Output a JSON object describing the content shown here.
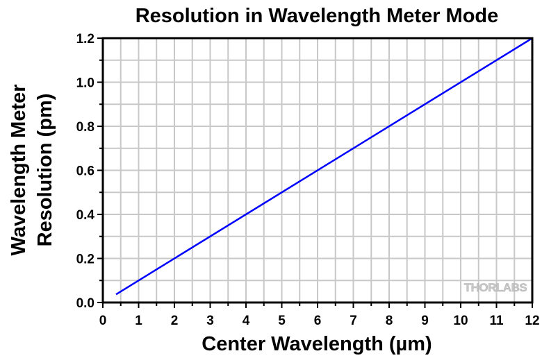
{
  "chart_data": {
    "type": "line",
    "title": "Resolution in Wavelength Meter Mode",
    "xlabel": "Center Wavelength (µm)",
    "ylabel_lines": [
      "Wavelength Meter",
      "Resolution (pm)"
    ],
    "xlim": [
      0,
      12
    ],
    "ylim": [
      0,
      1.2
    ],
    "xticks": [
      0,
      1,
      2,
      3,
      4,
      5,
      6,
      7,
      8,
      9,
      10,
      11,
      12
    ],
    "xtick_labels": [
      "0",
      "1",
      "2",
      "3",
      "4",
      "5",
      "6",
      "7",
      "8",
      "9",
      "10",
      "11",
      "12"
    ],
    "yticks": [
      0,
      0.2,
      0.4,
      0.6,
      0.8,
      1.0,
      1.2
    ],
    "ytick_labels": [
      "0.0",
      "0.2",
      "0.4",
      "0.6",
      "0.8",
      "1.0",
      "1.2"
    ],
    "grid": true,
    "x_grid_step": 0.5,
    "y_grid_step": 0.1,
    "series": [
      {
        "name": "Resolution",
        "color": "#0000ff",
        "x": [
          0.37,
          12
        ],
        "y": [
          0.037,
          1.2
        ]
      }
    ],
    "watermark": "THORLABS"
  }
}
